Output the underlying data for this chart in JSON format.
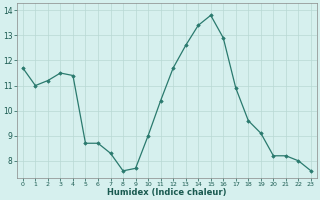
{
  "x": [
    0,
    1,
    2,
    3,
    4,
    5,
    6,
    7,
    8,
    9,
    10,
    11,
    12,
    13,
    14,
    15,
    16,
    17,
    18,
    19,
    20,
    21,
    22,
    23
  ],
  "y": [
    11.7,
    11.0,
    11.2,
    11.5,
    11.4,
    8.7,
    8.7,
    8.3,
    7.6,
    7.7,
    9.0,
    10.4,
    11.7,
    12.6,
    13.4,
    13.8,
    12.9,
    10.9,
    9.6,
    9.1,
    8.2,
    8.2,
    8.0,
    7.6
  ],
  "xlabel": "Humidex (Indice chaleur)",
  "ylim": [
    7.3,
    14.3
  ],
  "xlim": [
    -0.5,
    23.5
  ],
  "yticks": [
    8,
    9,
    10,
    11,
    12,
    13,
    14
  ],
  "xticks": [
    0,
    1,
    2,
    3,
    4,
    5,
    6,
    7,
    8,
    9,
    10,
    11,
    12,
    13,
    14,
    15,
    16,
    17,
    18,
    19,
    20,
    21,
    22,
    23
  ],
  "line_color": "#2a7a6e",
  "marker_color": "#2a7a6e",
  "bg_color": "#d6f0ee",
  "grid_color": "#b8d8d4",
  "fig_bg": "#d6f0ee"
}
